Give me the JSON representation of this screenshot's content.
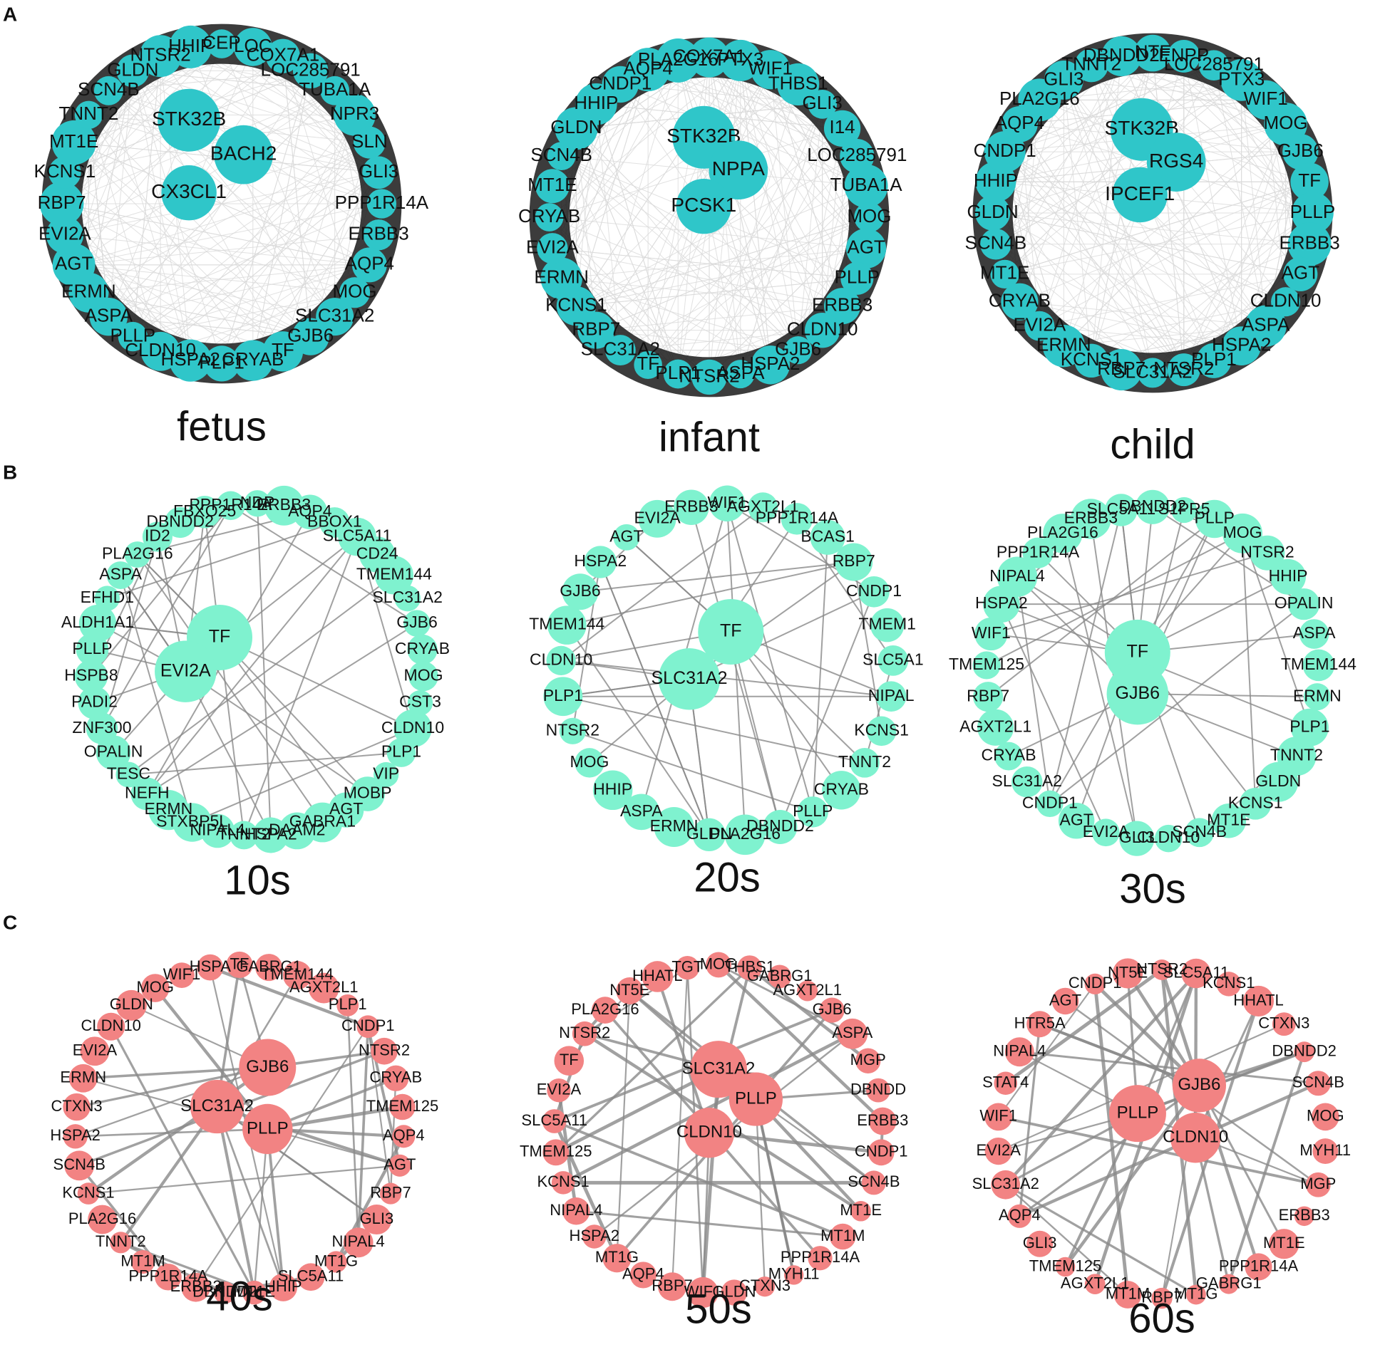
{
  "panels": [
    {
      "label": "A",
      "color": "#2fc6c9",
      "networks": [
        {
          "title": "fetus",
          "hubs": [
            "STK32B",
            "BACH2",
            "CX3CL1"
          ],
          "ring": [
            "CEP",
            "LOC",
            "COX7A1",
            "LOC285791",
            "TUBA1A",
            "NPR3",
            "SLN",
            "GLI3",
            "PPP1R14A",
            "ERBB3",
            "AQP4",
            "MOG",
            "SLC31A2",
            "GJB6",
            "TF",
            "CRYAB",
            "PLP1",
            "HSPA2",
            "CLDN10",
            "PLLP",
            "ASPA",
            "ERMN",
            "AGT",
            "EVI2A",
            "RBP7",
            "KCNS1",
            "MT1E",
            "TNNT2",
            "SCN4B",
            "GLDN",
            "NTSR2",
            "HHIP"
          ]
        },
        {
          "title": "infant",
          "hubs": [
            "STK32B",
            "NPPA",
            "PCSK1"
          ],
          "ring": [
            "COX7A1",
            "PTX3",
            "WIF1",
            "THBS1",
            "GLI3",
            "I14",
            "LOC285791",
            "TUBA1A",
            "MOG",
            "AGT",
            "PLLP",
            "ERBB3",
            "CLDN10",
            "GJB6",
            "HSPA2",
            "ASPA",
            "NTSR2",
            "PLP1",
            "TF",
            "SLC31A2",
            "RBP7",
            "KCNS1",
            "ERMN",
            "EVI2A",
            "CRYAB",
            "MT1E",
            "SCN4B",
            "GLDN",
            "HHIP",
            "CNDP1",
            "AQP4",
            "PLA2G16"
          ]
        },
        {
          "title": "child",
          "hubs": [
            "STK32B",
            "RGS4",
            "IPCEF1"
          ],
          "ring": [
            "NTF",
            "ENPP",
            "LOC285791",
            "PTX3",
            "WIF1",
            "MOG",
            "GJB6",
            "TF",
            "PLLP",
            "ERBB3",
            "AGT",
            "CLDN10",
            "ASPA",
            "HSPA2",
            "PLP1",
            "NTSR2",
            "SLC31A2",
            "RBP7",
            "KCNS1",
            "ERMN",
            "EVI2A",
            "CRYAB",
            "MT1E",
            "SCN4B",
            "GLDN",
            "HHIP",
            "CNDP1",
            "AQP4",
            "PLA2G16",
            "GLI3",
            "TNNT2",
            "DBNDD2"
          ]
        }
      ]
    },
    {
      "label": "B",
      "color": "#7ff2cf",
      "networks": [
        {
          "title": "10s",
          "hubs": [
            "TF",
            "EVI2A"
          ],
          "ring": [
            "NDP",
            "ERBB3",
            "AQP4",
            "BBOX1",
            "SLC5A11",
            "CD24",
            "TMEM144",
            "SLC31A2",
            "GJB6",
            "CRYAB",
            "MOG",
            "CST3",
            "CLDN10",
            "PLP1",
            "VIP",
            "MOBP",
            "AGT",
            "GABRA1",
            "DAAM2",
            "HSPA2",
            "TNNT2",
            "NIPAL4",
            "STXBP5L",
            "ERMN",
            "NEFH",
            "TESC",
            "OPALIN",
            "ZNF300",
            "PADI2",
            "HSPB8",
            "PLLP",
            "ALDH1A1",
            "EFHD1",
            "ASPA",
            "PLA2G16",
            "ID2",
            "DBNDD2",
            "FBXO25",
            "PPP1R14A"
          ]
        },
        {
          "title": "20s",
          "hubs": [
            "TF",
            "SLC31A2"
          ],
          "ring": [
            "WIF1",
            "AGXT2L1",
            "PPP1R14A",
            "BCAS1",
            "RBP7",
            "CNDP1",
            "TMEM1",
            "SLC5A1",
            "NIPAL",
            "KCNS1",
            "TNNT2",
            "CRYAB",
            "PLLP",
            "DBNDD2",
            "PLA2G16",
            "GLDN",
            "ERMN",
            "ASPA",
            "HHIP",
            "MOG",
            "NTSR2",
            "PLP1",
            "CLDN10",
            "TMEM144",
            "GJB6",
            "HSPA2",
            "AGT",
            "EVI2A",
            "ERBB3"
          ]
        },
        {
          "title": "30s",
          "hubs": [
            "TF",
            "GJB6"
          ],
          "ring": [
            "DBNDD2",
            "S1PR5",
            "PLLP",
            "MOG",
            "NTSR2",
            "HHIP",
            "OPALIN",
            "ASPA",
            "TMEM144",
            "ERMN",
            "PLP1",
            "TNNT2",
            "GLDN",
            "KCNS1",
            "MT1E",
            "SCN4B",
            "CLDN10",
            "GLI3",
            "EVI2A",
            "AGT",
            "CNDP1",
            "SLC31A2",
            "CRYAB",
            "AGXT2L1",
            "RBP7",
            "TMEM125",
            "WIF1",
            "HSPA2",
            "NIPAL4",
            "PPP1R14A",
            "PLA2G16",
            "ERBB3",
            "SLC5A11"
          ]
        }
      ]
    },
    {
      "label": "C",
      "color": "#f28383",
      "networks": [
        {
          "title": "40s",
          "hubs": [
            "GJB6",
            "SLC31A2",
            "PLLP"
          ],
          "ring": [
            "TF",
            "GABRG1",
            "TMEM144",
            "AGXT2L1",
            "PLP1",
            "CNDP1",
            "NTSR2",
            "CRYAB",
            "TMEM125",
            "AQP4",
            "AGT",
            "RBP7",
            "GLI3",
            "NIPAL4",
            "MT1G",
            "SLC5A11",
            "HHIP",
            "MT1E",
            "DBNDD2",
            "ERBB3",
            "PPP1R14A",
            "MT1M",
            "TNNT2",
            "PLA2G16",
            "KCNS1",
            "SCN4B",
            "HSPA2",
            "CTXN3",
            "ERMN",
            "EVI2A",
            "CLDN10",
            "GLDN",
            "MOG",
            "WIF1",
            "HSPA"
          ]
        },
        {
          "title": "50s",
          "hubs": [
            "SLC31A2",
            "PLLP",
            "CLDN10"
          ],
          "ring": [
            "MOG",
            "THBS1",
            "GABRG1",
            "AGXT2L1",
            "GJB6",
            "ASPA",
            "MGP",
            "DBNDD",
            "ERBB3",
            "CNDP1",
            "SCN4B",
            "MT1E",
            "MT1M",
            "PPP1R14A",
            "MYH11",
            "CTXN3",
            "GLDN",
            "WIF1",
            "RBP7",
            "AQP4",
            "MT1G",
            "HSPA2",
            "NIPAL4",
            "KCNS1",
            "TMEM125",
            "SLC5A11",
            "EVI2A",
            "TF",
            "NTSR2",
            "PLA2G16",
            "NT5E",
            "HHATL",
            "TGT"
          ]
        },
        {
          "title": "60s",
          "hubs": [
            "PLLP",
            "GJB6",
            "CLDN10"
          ],
          "ring": [
            "NTSR2",
            "SLC5A11",
            "KCNS1",
            "HHATL",
            "CTXN3",
            "DBNDD2",
            "SCN4B",
            "MOG",
            "MYH11",
            "MGP",
            "ERBB3",
            "MT1E",
            "PPP1R14A",
            "GABRG1",
            "MT1G",
            "RBP7",
            "MT1M",
            "AGXT2L1",
            "TMEM125",
            "GLI3",
            "AQP4",
            "SLC31A2",
            "EVI2A",
            "WIF1",
            "STAT4",
            "NIPAL4",
            "HTR5A",
            "AGT",
            "CNDP1",
            "NT5E"
          ]
        }
      ]
    }
  ]
}
